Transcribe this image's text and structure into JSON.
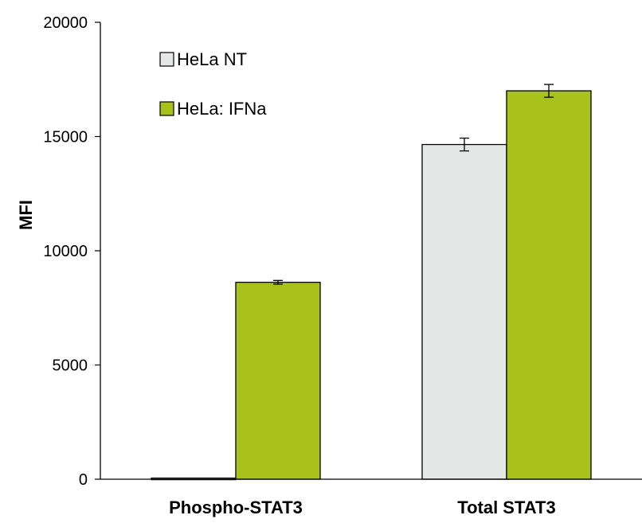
{
  "chart_data": {
    "type": "bar",
    "title": "",
    "xlabel": "",
    "ylabel": "MFI",
    "ylim": [
      0,
      20000
    ],
    "yticks": [
      0,
      5000,
      10000,
      15000,
      20000
    ],
    "categories": [
      "Phospho-STAT3",
      "Total STAT3"
    ],
    "series": [
      {
        "name": "HeLa NT",
        "color": "#e6e8e8",
        "values": [
          50,
          14650
        ],
        "errors": [
          0,
          280
        ]
      },
      {
        "name": "HeLa: IFNa",
        "color": "#a9c21b",
        "values": [
          8620,
          17000
        ],
        "errors": [
          80,
          280
        ]
      }
    ],
    "grid": false,
    "legend_position": "top-left"
  }
}
